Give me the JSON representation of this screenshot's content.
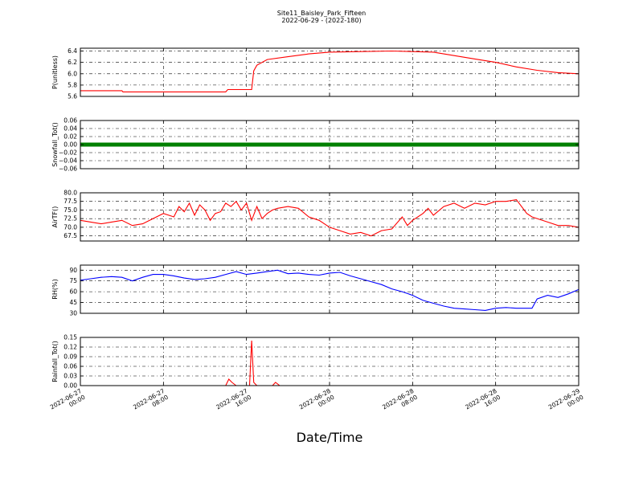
{
  "figure": {
    "title_line1": "Site11_Baisley_Park_Fifteen",
    "title_line2": "2022-06-29 - (2022-180)",
    "xlabel": "Date/Time"
  },
  "x_axis": {
    "start": "2022-06-27 00:00",
    "end": "2022-06-29 00:00",
    "ticks": [
      {
        "hour": 0,
        "line1": "2022-06-27",
        "line2": "00:00"
      },
      {
        "hour": 8,
        "line1": "2022-06-27",
        "line2": "08:00"
      },
      {
        "hour": 16,
        "line1": "2022-06-27",
        "line2": "16:00"
      },
      {
        "hour": 24,
        "line1": "2022-06-28",
        "line2": "00:00"
      },
      {
        "hour": 32,
        "line1": "2022-06-28",
        "line2": "08:00"
      },
      {
        "hour": 40,
        "line1": "2022-06-28",
        "line2": "16:00"
      },
      {
        "hour": 48,
        "line1": "2022-06-29",
        "line2": "00:00"
      }
    ]
  },
  "chart_data": [
    {
      "type": "line",
      "ylabel": "P(unitless)",
      "ylim": [
        5.6,
        6.45
      ],
      "yticks": [
        "6.4",
        "6.2",
        "6.0",
        "5.8",
        "5.6"
      ],
      "ytick_values": [
        6.4,
        6.2,
        6.0,
        5.8,
        5.6
      ],
      "grid": true,
      "color": "#ff0000",
      "x_hours": [
        0,
        4,
        4.1,
        7,
        14,
        14.2,
        16.5,
        16.7,
        17,
        18,
        20,
        22,
        24,
        27,
        30,
        32,
        34,
        36,
        38,
        40,
        42,
        44,
        46,
        48
      ],
      "values": [
        5.7,
        5.7,
        5.68,
        5.68,
        5.68,
        5.72,
        5.72,
        6.05,
        6.15,
        6.25,
        6.3,
        6.35,
        6.38,
        6.39,
        6.4,
        6.39,
        6.38,
        6.32,
        6.26,
        6.2,
        6.12,
        6.06,
        6.02,
        6.0
      ]
    },
    {
      "type": "line",
      "ylabel": "Snowfall_Tot()",
      "ylim": [
        -0.06,
        0.06
      ],
      "yticks": [
        "0.06",
        "0.04",
        "0.02",
        "0.00",
        "−0.02",
        "−0.04",
        "−0.06"
      ],
      "ytick_values": [
        0.06,
        0.04,
        0.02,
        0.0,
        -0.02,
        -0.04,
        -0.06
      ],
      "grid": true,
      "color": "#008000",
      "markers": true,
      "x_hours": [
        0,
        48
      ],
      "values": [
        0.0,
        0.0
      ]
    },
    {
      "type": "line",
      "ylabel": "AirTF()",
      "ylim": [
        66,
        80
      ],
      "yticks": [
        "80.0",
        "77.5",
        "75.0",
        "72.5",
        "70.0",
        "67.5"
      ],
      "ytick_values": [
        80.0,
        77.5,
        75.0,
        72.5,
        70.0,
        67.5
      ],
      "grid": true,
      "color": "#ff0000",
      "x_hours": [
        0,
        1,
        2,
        3,
        4,
        5,
        6,
        7,
        8,
        9,
        9.5,
        10,
        10.5,
        11,
        11.5,
        12,
        12.5,
        13,
        13.5,
        14,
        14.5,
        15,
        15.5,
        16,
        16.5,
        17,
        17.5,
        18,
        18.5,
        19,
        20,
        21,
        22,
        23,
        24,
        25,
        26,
        27,
        28,
        29,
        30,
        31,
        31.5,
        32,
        33,
        33.5,
        34,
        35,
        36,
        37,
        38,
        39,
        40,
        41,
        42,
        43,
        43.5,
        44,
        45,
        46,
        47,
        48
      ],
      "values": [
        72,
        71.5,
        71,
        71.5,
        72,
        70.5,
        71,
        72.5,
        74,
        73,
        76,
        74.5,
        77,
        73.5,
        76.5,
        75,
        72,
        74,
        74.5,
        77,
        76,
        77.5,
        75,
        77,
        72,
        76,
        72.5,
        74,
        75,
        75.5,
        76,
        75.5,
        73,
        72,
        70,
        69,
        68,
        68.5,
        67.5,
        69,
        69.5,
        73,
        70.5,
        72,
        74,
        75.5,
        73.5,
        76,
        77,
        75.5,
        77,
        76.5,
        77.5,
        77.5,
        78,
        74,
        73,
        72.5,
        71.5,
        70.5,
        70.5,
        70
      ]
    },
    {
      "type": "line",
      "ylabel": "RH(%)",
      "ylim": [
        30,
        97
      ],
      "yticks": [
        "90",
        "75",
        "60",
        "45",
        "30"
      ],
      "ytick_values": [
        90,
        75,
        60,
        45,
        30
      ],
      "grid": true,
      "color": "#0000ff",
      "x_hours": [
        0,
        1,
        2,
        3,
        4,
        5,
        6,
        7,
        8,
        9,
        10,
        11,
        12,
        13,
        14,
        15,
        16,
        17,
        18,
        19,
        20,
        21,
        22,
        23,
        24,
        25,
        26,
        27,
        28,
        29,
        30,
        31,
        32,
        33,
        34,
        35,
        36,
        37,
        38,
        39,
        40,
        41,
        42,
        43,
        43.5,
        44,
        45,
        46,
        47,
        48
      ],
      "values": [
        76,
        78,
        80,
        81,
        80,
        75,
        80,
        84,
        84,
        82,
        79,
        77,
        78,
        80,
        84,
        88,
        84,
        86,
        88,
        90,
        85,
        86,
        84,
        83,
        86,
        87,
        82,
        78,
        74,
        70,
        64,
        60,
        55,
        48,
        44,
        40,
        37,
        36,
        35,
        34,
        37,
        38,
        37,
        37,
        37,
        50,
        55,
        52,
        57,
        63
      ]
    },
    {
      "type": "line",
      "ylabel": "Rainfall_Tot()",
      "ylim": [
        0,
        0.15
      ],
      "yticks": [
        "0.15",
        "0.12",
        "0.09",
        "0.06",
        "0.03",
        "0.00"
      ],
      "ytick_values": [
        0.15,
        0.12,
        0.09,
        0.06,
        0.03,
        0.0
      ],
      "grid": true,
      "color": "#ff0000",
      "x_hours": [
        0,
        14,
        14.3,
        14.6,
        15,
        16,
        16.3,
        16.5,
        16.7,
        17,
        18,
        18.5,
        18.8,
        19.2,
        20,
        48
      ],
      "values": [
        0,
        0,
        0.02,
        0.01,
        0,
        0,
        0,
        0.14,
        0.01,
        0,
        0,
        0,
        0.01,
        0,
        0,
        0
      ]
    }
  ]
}
